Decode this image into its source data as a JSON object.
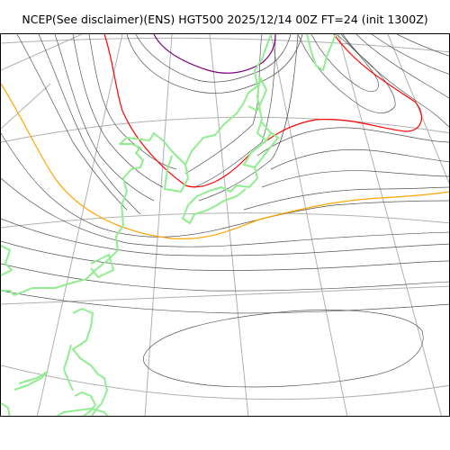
{
  "title": "NCEP(See disclaimer)(ENS) HGT500 2025/12/14 00Z FT=24 (init 1300Z)",
  "map": {
    "field": "HGT500",
    "colors": {
      "contour": "#555555",
      "graticule": "#b0b0b0",
      "coastline": "#90ee90",
      "contour_orange": "#ffa500",
      "contour_red": "#ff0000",
      "contour_purple": "#800080"
    }
  }
}
